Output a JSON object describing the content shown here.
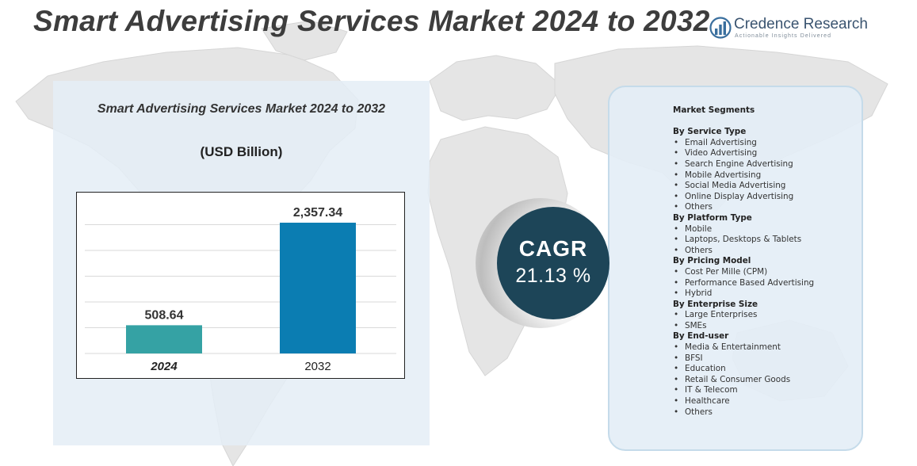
{
  "header": {
    "title": "Smart Advertising Services Market 2024 to 2032"
  },
  "brand": {
    "name": "Credence Research",
    "tagline": "Actionable Insights Delivered",
    "logo_icon": "bar-chart-globe-icon"
  },
  "colors": {
    "bar_2024": "#35a2a4",
    "bar_2032": "#0b7db2",
    "cagr_badge": "#1d4558",
    "panel_bg": "#e4eef6",
    "title_text": "#3d3d3d"
  },
  "chart_data": {
    "type": "bar",
    "title": "Smart Advertising Services Market 2024 to 2032",
    "unit_label": "(USD Billion)",
    "categories": [
      "2024",
      "2032"
    ],
    "values": [
      508.64,
      2357.34
    ],
    "value_labels": [
      "508.64",
      "2,357.34"
    ],
    "ylim": [
      0,
      2700
    ],
    "grid": true,
    "legend": "none"
  },
  "cagr": {
    "label": "CAGR",
    "value": "21.13 %"
  },
  "segments": {
    "heading": "Market Segments",
    "groups": [
      {
        "title": "By Service Type",
        "items": [
          "Email Advertising",
          "Video Advertising",
          "Search Engine Advertising",
          "Mobile Advertising",
          "Social Media Advertising",
          "Online Display Advertising",
          "Others"
        ]
      },
      {
        "title": "By Platform Type",
        "items": [
          "Mobile",
          "Laptops, Desktops & Tablets",
          "Others"
        ]
      },
      {
        "title": "By Pricing Model",
        "items": [
          "Cost Per Mille (CPM)",
          "Performance Based Advertising",
          "Hybrid"
        ]
      },
      {
        "title": "By Enterprise Size",
        "items": [
          "Large Enterprises",
          "SMEs"
        ]
      },
      {
        "title": "By End-user",
        "items": [
          "Media & Entertainment",
          "BFSI",
          "Education",
          "Retail & Consumer Goods",
          "IT & Telecom",
          "Healthcare",
          "Others"
        ]
      }
    ]
  }
}
